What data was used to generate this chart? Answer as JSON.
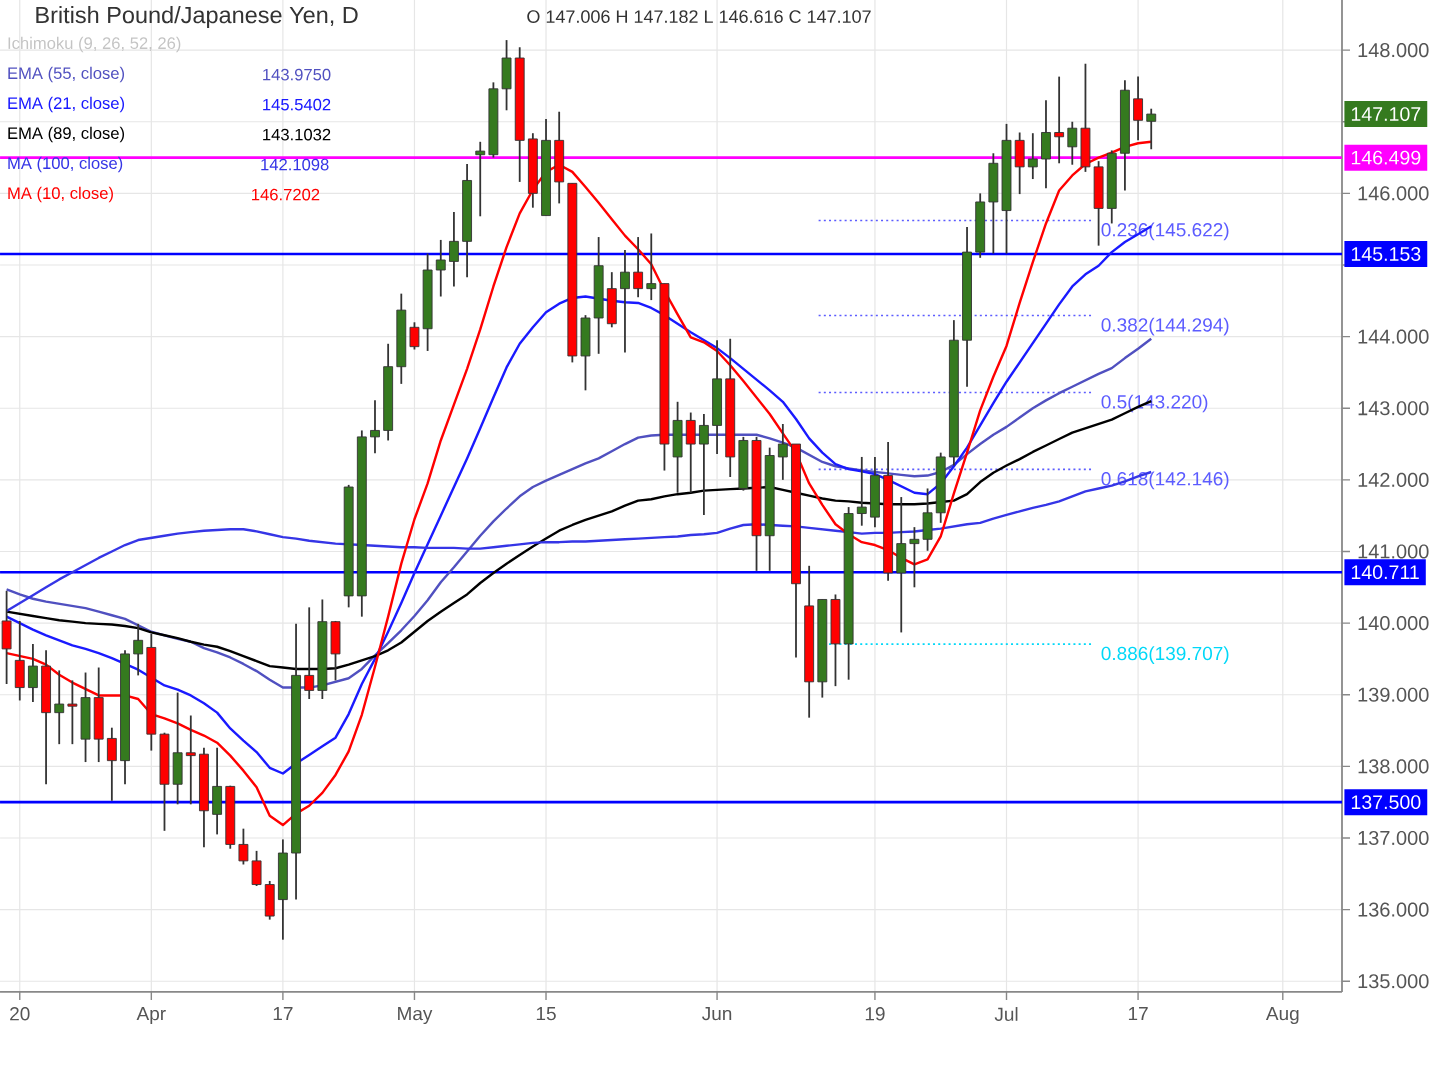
{
  "chart_data": {
    "type": "candlestick",
    "title": "British Pound/Japanese Yen, D",
    "subtitle": "O 147.006 H 147.182 L 146.616 C 147.107",
    "categories": [
      null,
      "20",
      null,
      null,
      null,
      null,
      null,
      null,
      null,
      null,
      null,
      "Apr",
      null,
      null,
      null,
      null,
      null,
      null,
      null,
      null,
      null,
      "17",
      null,
      null,
      null,
      null,
      null,
      null,
      null,
      null,
      null,
      "May",
      null,
      null,
      null,
      null,
      null,
      null,
      null,
      null,
      null,
      "15",
      null,
      null,
      null,
      null,
      null,
      null,
      null,
      null,
      null,
      null,
      null,
      null,
      "Jun",
      null,
      null,
      null,
      null,
      null,
      null,
      null,
      null,
      null,
      null,
      null,
      "19",
      null,
      null,
      null,
      null,
      null,
      null,
      null,
      null,
      null,
      "Jul",
      null,
      null,
      null,
      null,
      null,
      null,
      null,
      null,
      null,
      "17",
      null,
      null,
      null,
      null,
      null,
      null,
      null,
      null,
      null,
      null,
      "Aug",
      null,
      null,
      null,
      null
    ],
    "ohlc": [
      [
        140.03,
        140.45,
        139.15,
        139.64
      ],
      [
        139.48,
        140.03,
        138.92,
        139.1
      ],
      [
        139.1,
        139.71,
        138.9,
        139.4
      ],
      [
        139.4,
        139.62,
        137.75,
        138.75
      ],
      [
        138.75,
        139.34,
        138.31,
        138.87
      ],
      [
        138.87,
        139.2,
        138.31,
        138.84
      ],
      [
        138.38,
        139.31,
        138.06,
        138.96
      ],
      [
        138.96,
        139.38,
        138.06,
        138.38
      ],
      [
        138.39,
        138.54,
        137.52,
        138.08
      ],
      [
        138.08,
        139.62,
        137.75,
        139.57
      ],
      [
        139.57,
        139.99,
        139.27,
        139.76
      ],
      [
        139.66,
        139.85,
        138.22,
        138.45
      ],
      [
        138.45,
        138.47,
        137.1,
        137.75
      ],
      [
        137.75,
        139.03,
        137.47,
        138.19
      ],
      [
        138.19,
        138.71,
        137.47,
        138.15
      ],
      [
        138.17,
        138.26,
        136.87,
        137.38
      ],
      [
        137.33,
        138.26,
        137.05,
        137.72
      ],
      [
        137.72,
        137.73,
        136.85,
        136.91
      ],
      [
        136.91,
        137.13,
        136.63,
        136.68
      ],
      [
        136.68,
        136.82,
        136.33,
        136.35
      ],
      [
        136.35,
        136.4,
        135.86,
        135.91
      ],
      [
        136.14,
        136.98,
        135.58,
        136.79
      ],
      [
        136.79,
        139.99,
        136.14,
        139.27
      ],
      [
        139.27,
        140.22,
        138.94,
        139.06
      ],
      [
        139.06,
        140.33,
        138.94,
        140.02
      ],
      [
        140.02,
        140.03,
        139.2,
        139.57
      ],
      [
        140.38,
        141.93,
        140.22,
        141.9
      ],
      [
        140.38,
        142.69,
        140.09,
        142.6
      ],
      [
        142.6,
        143.11,
        142.37,
        142.69
      ],
      [
        142.69,
        143.9,
        142.55,
        143.58
      ],
      [
        143.58,
        144.6,
        143.34,
        144.37
      ],
      [
        144.13,
        144.2,
        143.82,
        143.86
      ],
      [
        144.11,
        145.16,
        143.8,
        144.93
      ],
      [
        144.93,
        145.35,
        144.56,
        145.07
      ],
      [
        145.05,
        145.74,
        144.7,
        145.33
      ],
      [
        145.33,
        146.41,
        144.83,
        146.18
      ],
      [
        146.54,
        146.72,
        145.68,
        146.59
      ],
      [
        146.54,
        147.55,
        146.5,
        147.46
      ],
      [
        147.46,
        148.14,
        147.16,
        147.89
      ],
      [
        147.89,
        148.04,
        146.16,
        146.74
      ],
      [
        146.76,
        146.84,
        145.8,
        146.0
      ],
      [
        145.69,
        147.04,
        145.69,
        146.74
      ],
      [
        146.74,
        147.14,
        145.86,
        146.16
      ],
      [
        146.14,
        146.14,
        143.64,
        143.73
      ],
      [
        143.73,
        144.3,
        143.25,
        144.26
      ],
      [
        144.26,
        145.39,
        143.76,
        144.99
      ],
      [
        144.67,
        144.9,
        144.13,
        144.18
      ],
      [
        144.67,
        145.21,
        143.78,
        144.9
      ],
      [
        144.9,
        145.39,
        144.55,
        144.67
      ],
      [
        144.67,
        145.44,
        144.51,
        144.74
      ],
      [
        144.74,
        144.74,
        142.13,
        142.5
      ],
      [
        142.32,
        143.09,
        141.82,
        142.83
      ],
      [
        142.83,
        142.94,
        141.82,
        142.5
      ],
      [
        142.5,
        142.92,
        141.51,
        142.76
      ],
      [
        142.76,
        143.95,
        142.36,
        143.41
      ],
      [
        143.41,
        143.97,
        142.04,
        142.32
      ],
      [
        141.88,
        142.6,
        141.85,
        142.55
      ],
      [
        142.55,
        142.6,
        140.73,
        141.22
      ],
      [
        141.22,
        142.45,
        140.73,
        142.34
      ],
      [
        142.32,
        142.78,
        142.0,
        142.5
      ],
      [
        142.5,
        142.5,
        139.52,
        140.55
      ],
      [
        140.24,
        140.8,
        138.68,
        139.18
      ],
      [
        139.18,
        140.33,
        138.96,
        140.33
      ],
      [
        140.33,
        140.4,
        139.12,
        139.71
      ],
      [
        139.71,
        141.62,
        139.21,
        141.53
      ],
      [
        141.53,
        142.32,
        141.36,
        141.62
      ],
      [
        141.48,
        142.32,
        141.34,
        142.06
      ],
      [
        142.06,
        142.53,
        140.59,
        140.7
      ],
      [
        140.7,
        141.76,
        139.87,
        141.11
      ],
      [
        141.11,
        141.34,
        140.5,
        141.17
      ],
      [
        141.17,
        141.88,
        141.01,
        141.54
      ],
      [
        141.54,
        142.38,
        141.4,
        142.32
      ],
      [
        142.32,
        144.23,
        142.2,
        143.95
      ],
      [
        143.95,
        145.53,
        143.3,
        145.18
      ],
      [
        145.18,
        146.0,
        145.1,
        145.88
      ],
      [
        145.88,
        146.56,
        145.16,
        146.42
      ],
      [
        145.76,
        146.97,
        145.16,
        146.74
      ],
      [
        146.74,
        146.85,
        145.99,
        146.37
      ],
      [
        146.37,
        146.84,
        146.2,
        146.48
      ],
      [
        146.48,
        147.3,
        146.07,
        146.85
      ],
      [
        146.85,
        147.63,
        146.42,
        146.79
      ],
      [
        146.65,
        147.0,
        146.4,
        146.91
      ],
      [
        146.91,
        147.81,
        146.3,
        146.37
      ],
      [
        146.37,
        146.45,
        145.27,
        145.79
      ],
      [
        145.79,
        146.6,
        145.58,
        146.56
      ],
      [
        146.56,
        147.58,
        146.04,
        147.44
      ],
      [
        147.32,
        147.63,
        146.74,
        147.02
      ],
      [
        147.006,
        147.182,
        146.616,
        147.107
      ],
      null,
      null,
      null,
      null,
      null,
      null,
      null,
      null,
      null,
      null,
      null,
      null,
      null,
      null
    ],
    "series": [
      {
        "name": "EMA (55, close)",
        "type": "line",
        "color": "#5050c0",
        "values": [
          140.47,
          140.4,
          140.34,
          140.3,
          140.27,
          140.24,
          140.21,
          140.16,
          140.11,
          140.06,
          139.97,
          139.88,
          139.83,
          139.78,
          139.74,
          139.65,
          139.59,
          139.52,
          139.43,
          139.33,
          139.21,
          139.1,
          139.1,
          139.1,
          139.13,
          139.18,
          139.23,
          139.36,
          139.55,
          139.72,
          139.9,
          140.1,
          140.32,
          140.57,
          140.78,
          141.0,
          141.22,
          141.42,
          141.6,
          141.77,
          141.9,
          141.99,
          142.07,
          142.15,
          142.23,
          142.3,
          142.4,
          142.5,
          142.59,
          142.62,
          142.63,
          142.63,
          142.63,
          142.63,
          142.63,
          142.63,
          142.63,
          142.63,
          142.58,
          142.52,
          142.45,
          142.35,
          142.25,
          142.19,
          142.16,
          142.13,
          142.11,
          142.09,
          142.07,
          142.05,
          142.06,
          142.11,
          142.21,
          142.36,
          142.5,
          142.63,
          142.74,
          142.87,
          143.0,
          143.11,
          143.21,
          143.3,
          143.39,
          143.48,
          143.56,
          143.7,
          143.83,
          143.97,
          null,
          null,
          null,
          null,
          null,
          null,
          null,
          null,
          null,
          null,
          null,
          null,
          null,
          null
        ]
      },
      {
        "name": "EMA (21, close)",
        "type": "line",
        "color": "#1a1aff",
        "values": [
          140.09,
          140.0,
          139.91,
          139.83,
          139.76,
          139.69,
          139.64,
          139.58,
          139.51,
          139.43,
          139.35,
          139.24,
          139.13,
          139.07,
          138.99,
          138.88,
          138.75,
          138.53,
          138.36,
          138.2,
          137.98,
          137.9,
          138.04,
          138.16,
          138.28,
          138.4,
          138.73,
          139.15,
          139.5,
          139.88,
          140.28,
          140.7,
          141.1,
          141.5,
          141.9,
          142.3,
          142.72,
          143.15,
          143.57,
          143.9,
          144.13,
          144.34,
          144.46,
          144.54,
          144.56,
          144.53,
          144.5,
          144.48,
          144.47,
          144.4,
          144.3,
          144.18,
          144.06,
          143.95,
          143.84,
          143.7,
          143.55,
          143.4,
          143.25,
          143.09,
          142.85,
          142.58,
          142.38,
          142.22,
          142.15,
          142.12,
          142.08,
          142.0,
          141.91,
          141.82,
          141.8,
          141.95,
          142.19,
          142.45,
          142.76,
          143.07,
          143.37,
          143.64,
          143.91,
          144.18,
          144.45,
          144.7,
          144.87,
          144.99,
          145.18,
          145.32,
          145.43,
          145.54,
          null,
          null,
          null,
          null,
          null,
          null,
          null,
          null,
          null,
          null,
          null,
          null,
          null,
          null
        ]
      },
      {
        "name": "EMA (89, close)",
        "type": "line",
        "color": "#000000",
        "values": [
          140.16,
          140.13,
          140.1,
          140.07,
          140.04,
          140.02,
          140.0,
          139.99,
          139.98,
          139.96,
          139.93,
          139.87,
          139.83,
          139.79,
          139.74,
          139.7,
          139.67,
          139.61,
          139.54,
          139.47,
          139.4,
          139.38,
          139.36,
          139.36,
          139.36,
          139.37,
          139.42,
          139.48,
          139.54,
          139.62,
          139.73,
          139.88,
          140.03,
          140.16,
          140.28,
          140.4,
          140.56,
          140.7,
          140.83,
          140.95,
          141.07,
          141.18,
          141.29,
          141.37,
          141.44,
          141.5,
          141.56,
          141.64,
          141.71,
          141.73,
          141.77,
          141.8,
          141.82,
          141.85,
          141.86,
          141.87,
          141.88,
          141.89,
          141.9,
          141.86,
          141.82,
          141.78,
          141.74,
          141.71,
          141.7,
          141.68,
          141.67,
          141.66,
          141.66,
          141.66,
          141.67,
          141.69,
          141.71,
          141.8,
          141.97,
          142.1,
          142.2,
          142.29,
          142.39,
          142.48,
          142.57,
          142.66,
          142.72,
          142.78,
          142.84,
          142.93,
          143.02,
          143.1,
          null,
          null,
          null,
          null,
          null,
          null,
          null,
          null,
          null,
          null,
          null,
          null,
          null,
          null
        ]
      },
      {
        "name": "MA (100, close)",
        "type": "line",
        "color": "#3535e6",
        "values": [
          140.17,
          140.28,
          140.39,
          140.5,
          140.61,
          140.71,
          140.81,
          140.91,
          141.0,
          141.09,
          141.16,
          141.19,
          141.22,
          141.25,
          141.27,
          141.29,
          141.3,
          141.31,
          141.31,
          141.28,
          141.24,
          141.2,
          141.18,
          141.15,
          141.13,
          141.11,
          141.1,
          141.09,
          141.08,
          141.07,
          141.06,
          141.06,
          141.05,
          141.05,
          141.05,
          141.04,
          141.04,
          141.06,
          141.08,
          141.1,
          141.12,
          141.13,
          141.13,
          141.14,
          141.14,
          141.15,
          141.16,
          141.17,
          141.18,
          141.19,
          141.2,
          141.21,
          141.23,
          141.24,
          141.26,
          141.32,
          141.37,
          141.38,
          141.37,
          141.36,
          141.35,
          141.33,
          141.31,
          141.29,
          141.27,
          141.25,
          141.26,
          141.26,
          141.27,
          141.28,
          141.3,
          141.32,
          141.35,
          141.38,
          141.4,
          141.46,
          141.51,
          141.56,
          141.61,
          141.65,
          141.7,
          141.77,
          141.84,
          141.88,
          141.92,
          141.98,
          142.05,
          142.11,
          null,
          null,
          null,
          null,
          null,
          null,
          null,
          null,
          null,
          null,
          null,
          null,
          null,
          null
        ]
      },
      {
        "name": "MA (10, close)",
        "type": "line",
        "color": "#ff0000",
        "values": [
          139.58,
          139.54,
          139.5,
          139.42,
          139.28,
          139.17,
          139.08,
          138.99,
          138.99,
          138.99,
          138.94,
          138.73,
          138.67,
          138.6,
          138.51,
          138.43,
          138.33,
          138.15,
          137.94,
          137.71,
          137.31,
          137.18,
          137.34,
          137.45,
          137.63,
          137.88,
          138.21,
          138.72,
          139.39,
          140.09,
          140.83,
          141.45,
          141.95,
          142.55,
          143.05,
          143.55,
          144.1,
          144.7,
          145.25,
          145.72,
          146.05,
          146.3,
          146.4,
          146.3,
          146.09,
          145.87,
          145.64,
          145.41,
          145.22,
          145.01,
          144.64,
          144.31,
          143.99,
          143.92,
          143.8,
          143.6,
          143.38,
          143.15,
          142.92,
          142.65,
          142.38,
          141.95,
          141.65,
          141.38,
          141.24,
          141.13,
          141.09,
          141.02,
          140.91,
          140.82,
          140.89,
          141.21,
          141.81,
          142.38,
          142.97,
          143.44,
          143.87,
          144.47,
          145.04,
          145.58,
          146.04,
          146.25,
          146.41,
          146.5,
          146.57,
          146.65,
          146.7,
          146.72,
          null,
          null,
          null,
          null,
          null,
          null,
          null,
          null,
          null,
          null,
          null,
          null,
          null,
          null
        ]
      }
    ],
    "ylim": [
      134.85,
      148.7
    ],
    "yticks": [
      {
        "value": 135,
        "label": "135.000"
      },
      {
        "value": 136,
        "label": "136.000"
      },
      {
        "value": 137,
        "label": "137.000"
      },
      {
        "value": 138,
        "label": "138.000"
      },
      {
        "value": 139,
        "label": "139.000"
      },
      {
        "value": 140,
        "label": "140.000"
      },
      {
        "value": 141,
        "label": "141.000"
      },
      {
        "value": 142,
        "label": "142.000"
      },
      {
        "value": 143,
        "label": "143.000"
      },
      {
        "value": 144,
        "label": "144.000"
      },
      {
        "value": 145,
        "label": null
      },
      {
        "value": 146,
        "label": "146.000"
      },
      {
        "value": 147,
        "label": null
      },
      {
        "value": 148,
        "label": "148.000"
      }
    ],
    "ref_lines": [
      {
        "axis": "y",
        "value": 146.499,
        "label": "146.499",
        "color": "#ff00ff"
      },
      {
        "axis": "y",
        "value": 145.153,
        "label": "145.153",
        "color": "#0000ff"
      },
      {
        "axis": "y",
        "value": 140.711,
        "label": "140.711",
        "color": "#0000ff"
      },
      {
        "axis": "y",
        "value": 137.5,
        "label": "137.500",
        "color": "#0000ff"
      },
      {
        "axis": "y",
        "value": 145.622,
        "label": "0.236(145.622)",
        "color": "#5c5cff",
        "line_style": "dotted"
      },
      {
        "axis": "y",
        "value": 144.294,
        "label": "0.382(144.294)",
        "color": "#5c5cff",
        "line_style": "dotted"
      },
      {
        "axis": "y",
        "value": 143.22,
        "label": "0.5(143.220)",
        "color": "#5c5cff",
        "line_style": "dotted"
      },
      {
        "axis": "y",
        "value": 142.146,
        "label": "0.618(142.146)",
        "color": "#5c5cff",
        "line_style": "dotted"
      },
      {
        "axis": "y",
        "value": 139.707,
        "label": "0.886(139.707)",
        "color": "#00d8f8",
        "line_style": "dotted"
      }
    ],
    "annotations": [
      "Ichimoku (9, 26, 52, 26)",
      "143.9750",
      "145.5402",
      "143.1032",
      "142.1098",
      "146.7202",
      {
        "text": "147.107",
        "y": 147.107
      }
    ],
    "legend": "top left",
    "grid": true
  }
}
